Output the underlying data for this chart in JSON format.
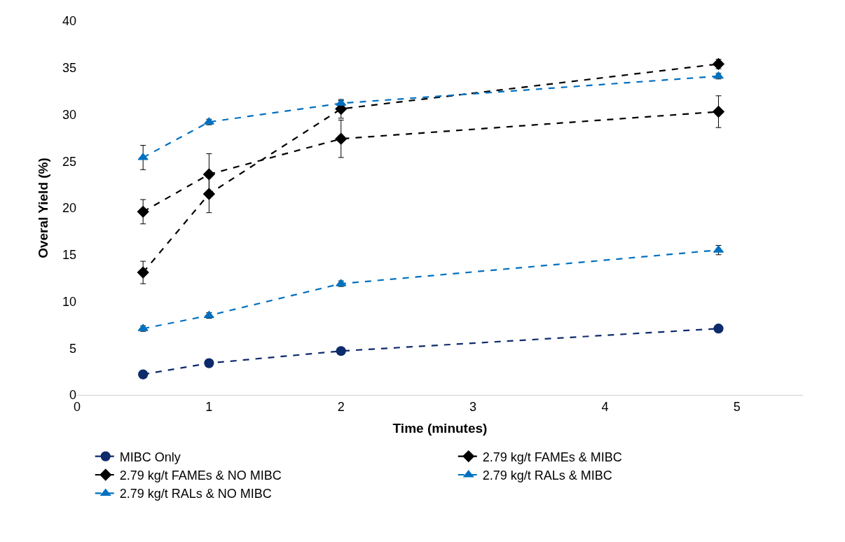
{
  "chart_data": {
    "type": "line",
    "xlabel": "Time (minutes)",
    "ylabel": "Overal Yield (%)",
    "xlim": [
      0,
      5.5
    ],
    "xticks": [
      0,
      1,
      2,
      3,
      4,
      5
    ],
    "ylim": [
      0,
      40
    ],
    "yticks": [
      0,
      5,
      10,
      15,
      20,
      25,
      30,
      35,
      40
    ],
    "legend": "bottom",
    "line_style": "dashed",
    "series": [
      {
        "name": "MIBC Only",
        "color": "#0d2a6b",
        "marker": "circle",
        "x": [
          0.5,
          1,
          2,
          4.86
        ],
        "values": [
          2.2,
          3.4,
          4.7,
          7.1
        ]
      },
      {
        "name": "2.79 kg/t FAMEs & MIBC",
        "color": "#000000",
        "marker": "diamond",
        "x": [
          0.5,
          1,
          2,
          4.86
        ],
        "values": [
          13.1,
          21.5,
          30.6,
          35.4
        ],
        "errors": [
          1.2,
          2.0,
          1.0,
          0.5
        ]
      },
      {
        "name": "2.79 kg/t FAMEs & NO MIBC",
        "color": "#000000",
        "marker": "diamond",
        "x": [
          0.5,
          1,
          2,
          4.86
        ],
        "values": [
          19.6,
          23.6,
          27.4,
          30.3
        ],
        "errors": [
          1.3,
          2.2,
          2.0,
          1.7
        ]
      },
      {
        "name": "2.79 kg/t RALs & MIBC",
        "color": "#0070c0",
        "marker": "triangle",
        "x": [
          0.5,
          1,
          2,
          4.86
        ],
        "values": [
          25.4,
          29.2,
          31.2,
          34.1
        ],
        "errors": [
          1.3,
          0.3,
          0.3,
          0.3
        ]
      },
      {
        "name": "2.79 kg/t RALs & NO MIBC",
        "color": "#0070c0",
        "marker": "triangle",
        "x": [
          0.5,
          1,
          2,
          4.86
        ],
        "values": [
          7.1,
          8.5,
          11.9,
          15.5
        ],
        "errors": [
          0.3,
          0.3,
          0.3,
          0.5
        ]
      }
    ]
  }
}
